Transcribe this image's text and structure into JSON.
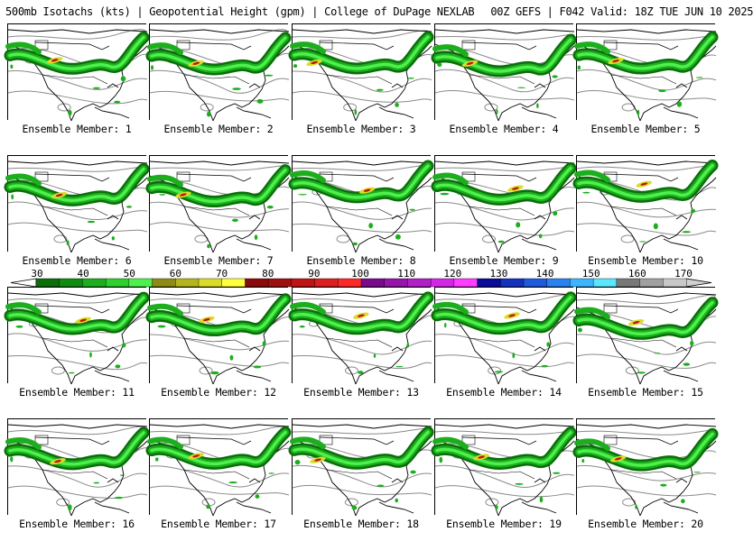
{
  "header": {
    "left": "500mb Isotachs (kts) | Geopotential Height (gpm) | College of DuPage NEXLAB",
    "right": "00Z GEFS | F042 Valid: 18Z TUE JUN 10 2025"
  },
  "members": [
    {
      "label": "Ensemble Member: 1"
    },
    {
      "label": "Ensemble Member: 2"
    },
    {
      "label": "Ensemble Member: 3"
    },
    {
      "label": "Ensemble Member: 4"
    },
    {
      "label": "Ensemble Member: 5"
    },
    {
      "label": "Ensemble Member: 6"
    },
    {
      "label": "Ensemble Member: 7"
    },
    {
      "label": "Ensemble Member: 8"
    },
    {
      "label": "Ensemble Member: 9"
    },
    {
      "label": "Ensemble Member: 10"
    },
    {
      "label": "Ensemble Member: 11"
    },
    {
      "label": "Ensemble Member: 12"
    },
    {
      "label": "Ensemble Member: 13"
    },
    {
      "label": "Ensemble Member: 14"
    },
    {
      "label": "Ensemble Member: 15"
    },
    {
      "label": "Ensemble Member: 16"
    },
    {
      "label": "Ensemble Member: 17"
    },
    {
      "label": "Ensemble Member: 18"
    },
    {
      "label": "Ensemble Member: 19"
    },
    {
      "label": "Ensemble Member: 20"
    }
  ],
  "colorbar": {
    "labels": [
      "30",
      "40",
      "50",
      "60",
      "70",
      "80",
      "90",
      "100",
      "110",
      "120",
      "130",
      "140",
      "150",
      "160",
      "170"
    ],
    "colors": [
      "#0a6e0a",
      "#0f8c0f",
      "#1cae1c",
      "#2dd02d",
      "#4ef04e",
      "#8c8c14",
      "#b4b41e",
      "#dcdc28",
      "#ffff3c",
      "#8c0a0a",
      "#a00f0f",
      "#be1414",
      "#dc1e1e",
      "#ff2828",
      "#7a0a8c",
      "#9614aa",
      "#b41ec8",
      "#d228e6",
      "#ff3cff",
      "#0a0a9c",
      "#1432be",
      "#1e5adc",
      "#2882f0",
      "#3cb4ff",
      "#5ae6ff",
      "#787878",
      "#a0a0a0",
      "#c8c8c8"
    ]
  }
}
